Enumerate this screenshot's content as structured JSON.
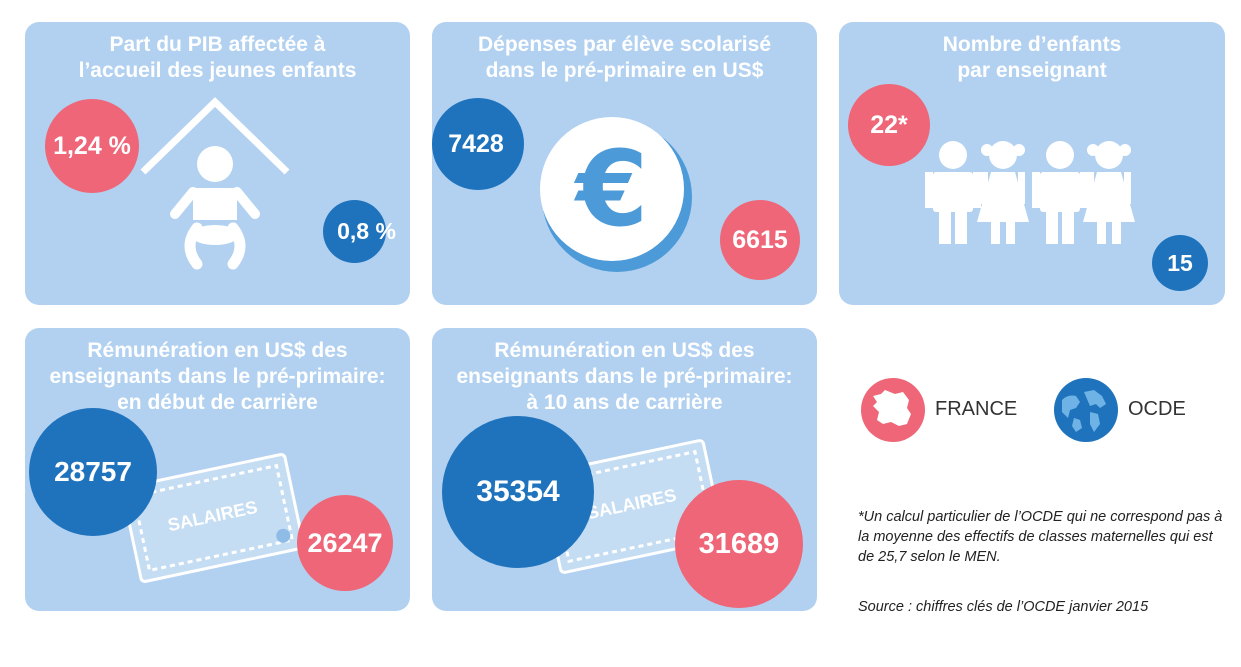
{
  "panels": {
    "pib": {
      "title": "Part du PIB affectée à\nl’accueil des jeunes enfants",
      "france": "1,24 %",
      "ocde": "0,8 %"
    },
    "depenses": {
      "title": "Dépenses par élève scolarisé\ndans le pré-primaire en US$",
      "ocde": "7428",
      "france": "6615",
      "symbol": "€"
    },
    "enfants": {
      "title": "Nombre d’enfants\npar enseignant",
      "france": "22*",
      "ocde": "15"
    },
    "debut": {
      "title": "Rémunération en US$ des\nenseignants dans le pré-primaire:\nen début de carrière",
      "ocde": "28757",
      "france": "26247",
      "ticket": "SALAIRES"
    },
    "dix_ans": {
      "title": "Rémunération en US$ des\nenseignants dans le pré-primaire:\nà 10 ans de carrière",
      "ocde": "35354",
      "france": "31689",
      "ticket": "SALAIRES"
    }
  },
  "legend": {
    "france": "FRANCE",
    "ocde": "OCDE"
  },
  "footnote": "*Un calcul particulier de l’OCDE qui ne correspond pas à la moyenne des effectifs de classes maternelles qui est de 25,7 selon le MEN.",
  "source": "Source : chiffres clés de l’OCDE janvier 2015",
  "colors": {
    "france": "#ee6677",
    "ocde": "#1f73bd",
    "panel": "#b2d1f0"
  }
}
